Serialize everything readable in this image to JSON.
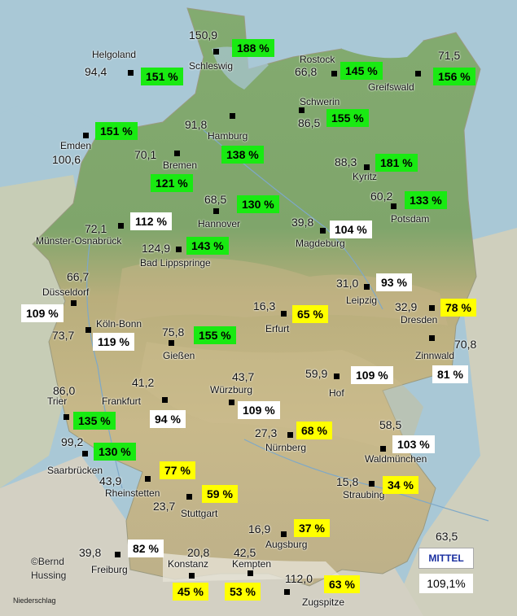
{
  "copyright": {
    "line1": "©Bernd",
    "line2": "Hussing"
  },
  "layer_label": "Niederschlag",
  "mittel": {
    "title": "MITTEL",
    "value": "109,1%"
  },
  "colors": {
    "green": "#19ea12",
    "yellow": "#ffff00",
    "white": "#ffffff",
    "land": "#7aa36a",
    "sea": "#a8c9d8"
  },
  "stations": [
    {
      "id": "schleswig",
      "name": "Schleswig",
      "value": "150,9",
      "percent": "188 %",
      "color": "green"
    },
    {
      "id": "helgoland",
      "name": "Helgoland",
      "value": "94,4",
      "percent": "151 %",
      "color": "green"
    },
    {
      "id": "rostock",
      "name": "Rostock",
      "value": "66,8",
      "percent": "145 %",
      "color": "green"
    },
    {
      "id": "greifswald",
      "name": "Greifswald",
      "value": "71,5",
      "percent": "156 %",
      "color": "green"
    },
    {
      "id": "schwerin",
      "name": "Schwerin",
      "value": "86,5",
      "percent": "155 %",
      "color": "green"
    },
    {
      "id": "emden",
      "name": "Emden",
      "value": "100,6",
      "percent": "151 %",
      "color": "green"
    },
    {
      "id": "hamburg",
      "name": "Hamburg",
      "value": "91,8",
      "percent": "138 %",
      "color": "green"
    },
    {
      "id": "bremen",
      "name": "Bremen",
      "value": "70,1",
      "percent": "121 %",
      "color": "green"
    },
    {
      "id": "kyritz",
      "name": "Kyritz",
      "value": "88,3",
      "percent": "181 %",
      "color": "green"
    },
    {
      "id": "potsdam",
      "name": "Potsdam",
      "value": "60,2",
      "percent": "133 %",
      "color": "green"
    },
    {
      "id": "hannover",
      "name": "Hannover",
      "value": "68,5",
      "percent": "130 %",
      "color": "green"
    },
    {
      "id": "muenster",
      "name": "Münster-Osnabrück",
      "value": "72,1",
      "percent": "112 %",
      "color": "white"
    },
    {
      "id": "magdeburg",
      "name": "Magdeburg",
      "value": "39,8",
      "percent": "104 %",
      "color": "white"
    },
    {
      "id": "lippspringe",
      "name": "Bad Lippspringe",
      "value": "124,9",
      "percent": "143 %",
      "color": "green"
    },
    {
      "id": "duesseldorf",
      "name": "Düsseldorf",
      "value": "66,7",
      "percent": "109 %",
      "color": "white"
    },
    {
      "id": "leipzig",
      "name": "Leipzig",
      "value": "31,0",
      "percent": "93 %",
      "color": "white"
    },
    {
      "id": "erfurt",
      "name": "Erfurt",
      "value": "16,3",
      "percent": "65 %",
      "color": "yellow"
    },
    {
      "id": "dresden",
      "name": "Dresden",
      "value": "32,9",
      "percent": "78 %",
      "color": "yellow"
    },
    {
      "id": "koeln",
      "name": "Köln-Bonn",
      "value": "73,7",
      "percent": "119 %",
      "color": "white"
    },
    {
      "id": "giessen",
      "name": "Gießen",
      "value": "75,8",
      "percent": "155 %",
      "color": "green"
    },
    {
      "id": "zinnwald",
      "name": "Zinnwald",
      "value": "70,8",
      "percent": "81 %",
      "color": "white"
    },
    {
      "id": "hof",
      "name": "Hof",
      "value": "59,9",
      "percent": "109 %",
      "color": "white"
    },
    {
      "id": "frankfurt",
      "name": "Frankfurt",
      "value": "41,2",
      "percent": "94 %",
      "color": "white"
    },
    {
      "id": "wuerzburg",
      "name": "Würzburg",
      "value": "43,7",
      "percent": "109 %",
      "color": "white"
    },
    {
      "id": "trier",
      "name": "Trier",
      "value": "86,0",
      "percent": "135 %",
      "color": "green"
    },
    {
      "id": "nuernberg",
      "name": "Nürnberg",
      "value": "27,3",
      "percent": "68 %",
      "color": "yellow"
    },
    {
      "id": "waldmuenchen",
      "name": "Waldmünchen",
      "value": "58,5",
      "percent": "103 %",
      "color": "white"
    },
    {
      "id": "saarbruecken",
      "name": "Saarbrücken",
      "value": "99,2",
      "percent": "130 %",
      "color": "green"
    },
    {
      "id": "rheinstetten",
      "name": "Rheinstetten",
      "value": "43,9",
      "percent": "77 %",
      "color": "yellow"
    },
    {
      "id": "stuttgart",
      "name": "Stuttgart",
      "value": "23,7",
      "percent": "59 %",
      "color": "yellow"
    },
    {
      "id": "straubing",
      "name": "Straubing",
      "value": "15,8",
      "percent": "34 %",
      "color": "yellow"
    },
    {
      "id": "augsburg",
      "name": "Augsburg",
      "value": "16,9",
      "percent": "37 %",
      "color": "yellow"
    },
    {
      "id": "freiburg",
      "name": "Freiburg",
      "value": "39,8",
      "percent": "82 %",
      "color": "white"
    },
    {
      "id": "konstanz",
      "name": "Konstanz",
      "value": "20,8",
      "percent": "45 %",
      "color": "yellow"
    },
    {
      "id": "kempten",
      "name": "Kempten",
      "value": "42,5",
      "percent": "53 %",
      "color": "yellow"
    },
    {
      "id": "zugspitze",
      "name": "Zugspitze",
      "value": "112,0",
      "percent": "63 %",
      "color": "yellow"
    }
  ]
}
